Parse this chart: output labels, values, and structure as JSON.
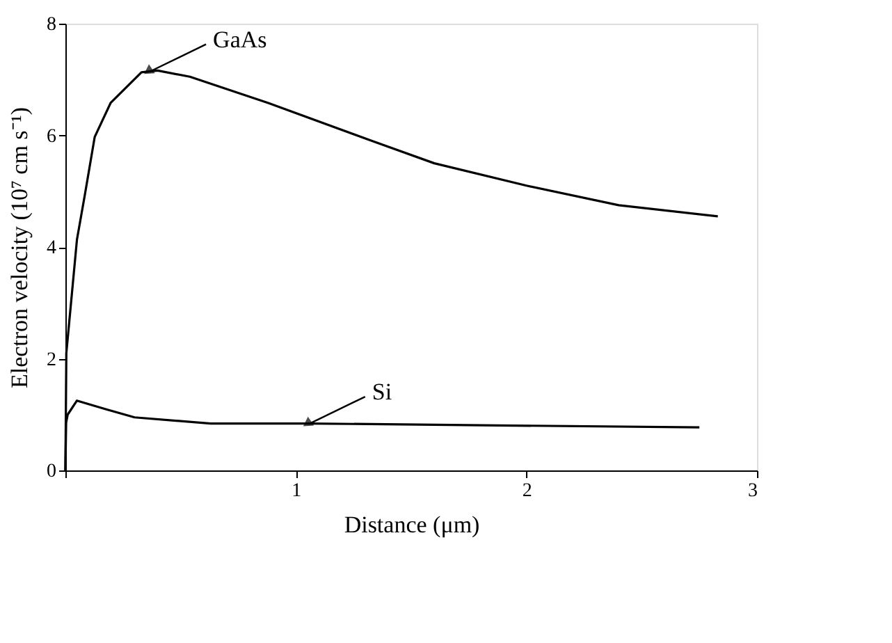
{
  "chart_data": {
    "type": "line",
    "xlabel": "Distance (μm)",
    "ylabel": "Electron velocity (10⁷ cm s⁻¹)",
    "xlim": [
      0,
      3
    ],
    "ylim": [
      0,
      8
    ],
    "xticks": [
      {
        "value": 0,
        "label": null
      },
      1,
      2,
      3
    ],
    "yticks": [
      0,
      2,
      4,
      6,
      8
    ],
    "marker": "none",
    "line_style": "solid",
    "series": [
      {
        "color": "#000000",
        "x": [
          0,
          0.004,
          0.05,
          0.085,
          0.127,
          0.196,
          0.33,
          0.4,
          0.54,
          0.88,
          1.33,
          1.6,
          2.0,
          2.4,
          2.83
        ],
        "values": [
          0,
          2.1,
          4.13,
          4.95,
          5.97,
          6.58,
          7.13,
          7.16,
          7.05,
          6.58,
          5.9,
          5.5,
          5.1,
          4.75,
          4.55
        ]
      },
      {
        "color": "#000000",
        "x": [
          0,
          0.003,
          0.01,
          0.05,
          0.18,
          0.3,
          0.63,
          1.06,
          2.75
        ],
        "values": [
          0,
          0.85,
          1.0,
          1.25,
          1.09,
          0.95,
          0.84,
          0.84,
          0.77
        ]
      }
    ],
    "annotations": [
      {
        "text": "GaAs",
        "x": 0.37,
        "y": 7.15
      },
      {
        "text": "Si",
        "x": 1.06,
        "y": 0.84
      }
    ]
  }
}
